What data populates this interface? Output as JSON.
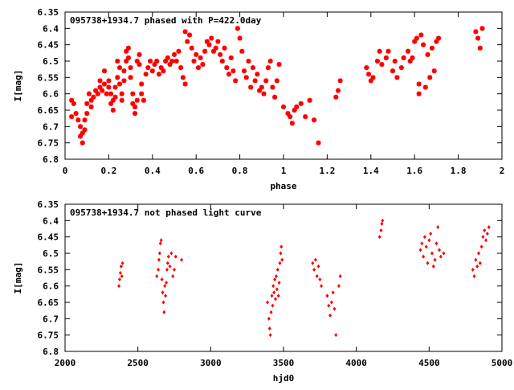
{
  "colors": {
    "points": "#ff0000",
    "axis": "#000000",
    "background": "#ffffff"
  },
  "chart_data": [
    {
      "type": "scatter",
      "title": "095738+1934.7 phased with P=422.0day",
      "xlabel": "phase",
      "ylabel": "I[mag]",
      "xlim": [
        0,
        2
      ],
      "ylim": [
        6.35,
        6.8
      ],
      "y_inverted": true,
      "grid": false,
      "marker": "star",
      "xticks": [
        0,
        0.2,
        0.4,
        0.6,
        0.8,
        1,
        1.2,
        1.4,
        1.6,
        1.8,
        2
      ],
      "xtick_labels": [
        "0",
        "0.2",
        "0.4",
        "0.6",
        "0.8",
        "1",
        "1.2",
        "1.4",
        "1.6",
        "1.8",
        "2"
      ],
      "yticks": [
        6.35,
        6.4,
        6.45,
        6.5,
        6.55,
        6.6,
        6.65,
        6.7,
        6.75,
        6.8
      ],
      "ytick_labels": [
        "6.35",
        "6.4",
        "6.45",
        "6.5",
        "6.55",
        "6.6",
        "6.65",
        "6.7",
        "6.75",
        "6.8"
      ],
      "points": [
        [
          0.03,
          6.62
        ],
        [
          0.03,
          6.67
        ],
        [
          0.04,
          6.63
        ],
        [
          0.05,
          6.66
        ],
        [
          0.06,
          6.68
        ],
        [
          0.07,
          6.7
        ],
        [
          0.07,
          6.73
        ],
        [
          0.08,
          6.72
        ],
        [
          0.08,
          6.75
        ],
        [
          0.09,
          6.71
        ],
        [
          0.09,
          6.68
        ],
        [
          0.1,
          6.66
        ],
        [
          0.1,
          6.63
        ],
        [
          0.11,
          6.6
        ],
        [
          0.12,
          6.62
        ],
        [
          0.12,
          6.64
        ],
        [
          0.13,
          6.61
        ],
        [
          0.14,
          6.59
        ],
        [
          0.15,
          6.6
        ],
        [
          0.16,
          6.58
        ],
        [
          0.16,
          6.56
        ],
        [
          0.17,
          6.59
        ],
        [
          0.18,
          6.57
        ],
        [
          0.18,
          6.53
        ],
        [
          0.19,
          6.6
        ],
        [
          0.2,
          6.56
        ],
        [
          0.2,
          6.58
        ],
        [
          0.21,
          6.6
        ],
        [
          0.21,
          6.63
        ],
        [
          0.22,
          6.62
        ],
        [
          0.22,
          6.65
        ],
        [
          0.23,
          6.61
        ],
        [
          0.23,
          6.58
        ],
        [
          0.24,
          6.55
        ],
        [
          0.24,
          6.5
        ],
        [
          0.25,
          6.52
        ],
        [
          0.25,
          6.57
        ],
        [
          0.26,
          6.6
        ],
        [
          0.26,
          6.62
        ],
        [
          0.27,
          6.56
        ],
        [
          0.27,
          6.53
        ],
        [
          0.28,
          6.5
        ],
        [
          0.28,
          6.47
        ],
        [
          0.29,
          6.46
        ],
        [
          0.29,
          6.49
        ],
        [
          0.3,
          6.52
        ],
        [
          0.3,
          6.55
        ],
        [
          0.31,
          6.6
        ],
        [
          0.31,
          6.63
        ],
        [
          0.32,
          6.66
        ],
        [
          0.32,
          6.64
        ],
        [
          0.33,
          6.62
        ],
        [
          0.33,
          6.5
        ],
        [
          0.34,
          6.48
        ],
        [
          0.34,
          6.51
        ],
        [
          0.35,
          6.57
        ],
        [
          0.35,
          6.6
        ],
        [
          0.36,
          6.62
        ],
        [
          0.37,
          6.54
        ],
        [
          0.38,
          6.52
        ],
        [
          0.39,
          6.5
        ],
        [
          0.4,
          6.53
        ],
        [
          0.41,
          6.51
        ],
        [
          0.42,
          6.5
        ],
        [
          0.43,
          6.54
        ],
        [
          0.44,
          6.52
        ],
        [
          0.45,
          6.53
        ],
        [
          0.46,
          6.5
        ],
        [
          0.47,
          6.49
        ],
        [
          0.48,
          6.51
        ],
        [
          0.49,
          6.5
        ],
        [
          0.5,
          6.48
        ],
        [
          0.51,
          6.5
        ],
        [
          0.52,
          6.47
        ],
        [
          0.53,
          6.52
        ],
        [
          0.54,
          6.55
        ],
        [
          0.55,
          6.57
        ],
        [
          0.55,
          6.41
        ],
        [
          0.56,
          6.44
        ],
        [
          0.57,
          6.42
        ],
        [
          0.58,
          6.46
        ],
        [
          0.59,
          6.5
        ],
        [
          0.6,
          6.48
        ],
        [
          0.61,
          6.52
        ],
        [
          0.62,
          6.49
        ],
        [
          0.63,
          6.51
        ],
        [
          0.64,
          6.47
        ],
        [
          0.65,
          6.44
        ],
        [
          0.66,
          6.45
        ],
        [
          0.67,
          6.43
        ],
        [
          0.68,
          6.47
        ],
        [
          0.69,
          6.46
        ],
        [
          0.7,
          6.44
        ],
        [
          0.71,
          6.48
        ],
        [
          0.72,
          6.5
        ],
        [
          0.73,
          6.46
        ],
        [
          0.74,
          6.52
        ],
        [
          0.75,
          6.54
        ],
        [
          0.76,
          6.49
        ],
        [
          0.77,
          6.53
        ],
        [
          0.78,
          6.56
        ],
        [
          0.79,
          6.4
        ],
        [
          0.8,
          6.43
        ],
        [
          0.81,
          6.47
        ],
        [
          0.82,
          6.53
        ],
        [
          0.83,
          6.55
        ],
        [
          0.84,
          6.5
        ],
        [
          0.85,
          6.58
        ],
        [
          0.86,
          6.52
        ],
        [
          0.87,
          6.56
        ],
        [
          0.88,
          6.54
        ],
        [
          0.89,
          6.59
        ],
        [
          0.9,
          6.58
        ],
        [
          0.91,
          6.6
        ],
        [
          0.92,
          6.56
        ],
        [
          0.93,
          6.52
        ],
        [
          0.94,
          6.5
        ],
        [
          0.95,
          6.58
        ],
        [
          0.96,
          6.61
        ],
        [
          0.97,
          6.56
        ],
        [
          0.98,
          6.51
        ],
        [
          1.0,
          6.64
        ],
        [
          1.02,
          6.66
        ],
        [
          1.03,
          6.67
        ],
        [
          1.04,
          6.69
        ],
        [
          1.05,
          6.65
        ],
        [
          1.06,
          6.64
        ],
        [
          1.08,
          6.63
        ],
        [
          1.1,
          6.67
        ],
        [
          1.12,
          6.62
        ],
        [
          1.14,
          6.68
        ],
        [
          1.16,
          6.75
        ],
        [
          1.24,
          6.61
        ],
        [
          1.25,
          6.59
        ],
        [
          1.26,
          6.56
        ],
        [
          1.38,
          6.52
        ],
        [
          1.39,
          6.54
        ],
        [
          1.4,
          6.56
        ],
        [
          1.41,
          6.55
        ],
        [
          1.43,
          6.5
        ],
        [
          1.44,
          6.47
        ],
        [
          1.45,
          6.51
        ],
        [
          1.47,
          6.49
        ],
        [
          1.48,
          6.47
        ],
        [
          1.5,
          6.53
        ],
        [
          1.51,
          6.5
        ],
        [
          1.52,
          6.55
        ],
        [
          1.54,
          6.52
        ],
        [
          1.55,
          6.49
        ],
        [
          1.57,
          6.47
        ],
        [
          1.58,
          6.5
        ],
        [
          1.59,
          6.49
        ],
        [
          1.6,
          6.44
        ],
        [
          1.61,
          6.43
        ],
        [
          1.62,
          6.57
        ],
        [
          1.62,
          6.6
        ],
        [
          1.63,
          6.42
        ],
        [
          1.64,
          6.45
        ],
        [
          1.65,
          6.58
        ],
        [
          1.66,
          6.48
        ],
        [
          1.67,
          6.55
        ],
        [
          1.68,
          6.46
        ],
        [
          1.69,
          6.53
        ],
        [
          1.7,
          6.44
        ],
        [
          1.71,
          6.43
        ],
        [
          1.88,
          6.41
        ],
        [
          1.89,
          6.43
        ],
        [
          1.9,
          6.46
        ],
        [
          1.91,
          6.4
        ]
      ]
    },
    {
      "type": "scatter",
      "title": "095738+1934.7 not phased light curve",
      "xlabel": "hjd0",
      "ylabel": "I[mag]",
      "xlim": [
        2000,
        5000
      ],
      "ylim": [
        6.35,
        6.8
      ],
      "y_inverted": true,
      "grid": false,
      "marker": "diamond",
      "xticks": [
        2000,
        2500,
        3000,
        3500,
        4000,
        4500,
        5000
      ],
      "xtick_labels": [
        "2000",
        "2500",
        "3000",
        "3500",
        "4000",
        "4500",
        "5000"
      ],
      "yticks": [
        6.35,
        6.4,
        6.45,
        6.5,
        6.55,
        6.6,
        6.65,
        6.7,
        6.75,
        6.8
      ],
      "ytick_labels": [
        "6.35",
        "6.4",
        "6.45",
        "6.5",
        "6.55",
        "6.6",
        "6.65",
        "6.7",
        "6.75",
        "6.8"
      ],
      "points": [
        [
          2370,
          6.6
        ],
        [
          2375,
          6.58
        ],
        [
          2380,
          6.56
        ],
        [
          2385,
          6.54
        ],
        [
          2390,
          6.57
        ],
        [
          2395,
          6.53
        ],
        [
          2630,
          6.57
        ],
        [
          2640,
          6.55
        ],
        [
          2645,
          6.52
        ],
        [
          2650,
          6.5
        ],
        [
          2655,
          6.47
        ],
        [
          2660,
          6.46
        ],
        [
          2665,
          6.58
        ],
        [
          2670,
          6.62
        ],
        [
          2675,
          6.65
        ],
        [
          2680,
          6.68
        ],
        [
          2685,
          6.6
        ],
        [
          2690,
          6.63
        ],
        [
          2695,
          6.59
        ],
        [
          2700,
          6.55
        ],
        [
          2705,
          6.53
        ],
        [
          2710,
          6.51
        ],
        [
          2720,
          6.54
        ],
        [
          2730,
          6.5
        ],
        [
          2740,
          6.57
        ],
        [
          2750,
          6.55
        ],
        [
          2760,
          6.51
        ],
        [
          2800,
          6.52
        ],
        [
          3390,
          6.65
        ],
        [
          3400,
          6.7
        ],
        [
          3405,
          6.73
        ],
        [
          3410,
          6.75
        ],
        [
          3415,
          6.68
        ],
        [
          3420,
          6.63
        ],
        [
          3425,
          6.66
        ],
        [
          3430,
          6.6
        ],
        [
          3435,
          6.62
        ],
        [
          3440,
          6.58
        ],
        [
          3445,
          6.64
        ],
        [
          3450,
          6.57
        ],
        [
          3455,
          6.61
        ],
        [
          3460,
          6.55
        ],
        [
          3465,
          6.63
        ],
        [
          3470,
          6.59
        ],
        [
          3475,
          6.53
        ],
        [
          3480,
          6.5
        ],
        [
          3485,
          6.48
        ],
        [
          3490,
          6.52
        ],
        [
          3700,
          6.53
        ],
        [
          3710,
          6.55
        ],
        [
          3720,
          6.52
        ],
        [
          3730,
          6.57
        ],
        [
          3740,
          6.54
        ],
        [
          3750,
          6.58
        ],
        [
          3760,
          6.6
        ],
        [
          3800,
          6.63
        ],
        [
          3810,
          6.66
        ],
        [
          3820,
          6.69
        ],
        [
          3830,
          6.65
        ],
        [
          3840,
          6.62
        ],
        [
          3850,
          6.67
        ],
        [
          3860,
          6.75
        ],
        [
          3880,
          6.6
        ],
        [
          3890,
          6.57
        ],
        [
          4160,
          6.45
        ],
        [
          4170,
          6.43
        ],
        [
          4175,
          6.41
        ],
        [
          4180,
          6.4
        ],
        [
          4440,
          6.49
        ],
        [
          4450,
          6.47
        ],
        [
          4460,
          6.51
        ],
        [
          4470,
          6.45
        ],
        [
          4480,
          6.48
        ],
        [
          4490,
          6.53
        ],
        [
          4500,
          6.46
        ],
        [
          4510,
          6.44
        ],
        [
          4520,
          6.5
        ],
        [
          4530,
          6.54
        ],
        [
          4540,
          6.52
        ],
        [
          4550,
          6.47
        ],
        [
          4560,
          6.42
        ],
        [
          4570,
          6.49
        ],
        [
          4580,
          6.51
        ],
        [
          4600,
          6.5
        ],
        [
          4800,
          6.55
        ],
        [
          4810,
          6.57
        ],
        [
          4820,
          6.52
        ],
        [
          4830,
          6.54
        ],
        [
          4840,
          6.5
        ],
        [
          4850,
          6.53
        ],
        [
          4860,
          6.48
        ],
        [
          4870,
          6.45
        ],
        [
          4880,
          6.43
        ],
        [
          4890,
          6.46
        ],
        [
          4900,
          6.44
        ],
        [
          4910,
          6.42
        ]
      ]
    }
  ]
}
